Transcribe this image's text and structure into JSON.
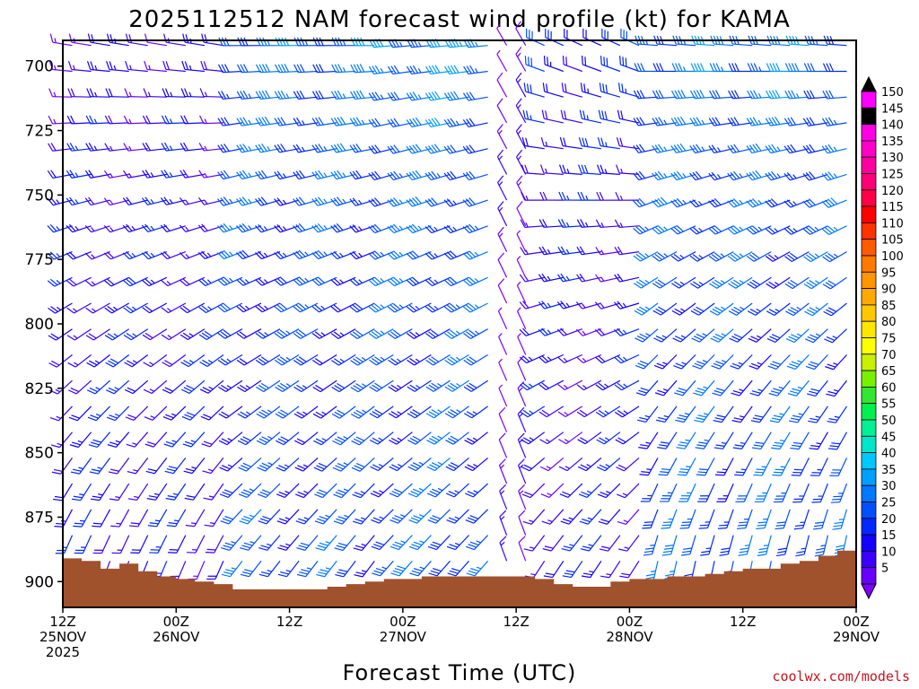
{
  "title": "2025112512 NAM forecast wind profile (kt) for KAMA",
  "xlabel": "Forecast Time (UTC)",
  "credit": "coolwx.com/models",
  "colors": {
    "terrain": "#a0522d",
    "frame": "#000000",
    "credit": "#c8141e"
  },
  "chart_data": {
    "type": "wind-barb time-height profile",
    "y_axis": {
      "label_unit": "hPa",
      "range": [
        690,
        910
      ],
      "ticks": [
        "700",
        "725",
        "750",
        "775",
        "800",
        "825",
        "850",
        "875",
        "900"
      ]
    },
    "x_axis": {
      "range_hours": [
        0,
        84
      ],
      "ticks": [
        {
          "hour": 0,
          "line1": "12Z",
          "line2": "25NOV",
          "line3": "2025"
        },
        {
          "hour": 12,
          "line1": "00Z",
          "line2": "26NOV",
          "line3": ""
        },
        {
          "hour": 24,
          "line1": "12Z",
          "line2": "",
          "line3": ""
        },
        {
          "hour": 36,
          "line1": "00Z",
          "line2": "27NOV",
          "line3": ""
        },
        {
          "hour": 48,
          "line1": "12Z",
          "line2": "",
          "line3": ""
        },
        {
          "hour": 60,
          "line1": "00Z",
          "line2": "28NOV",
          "line3": ""
        },
        {
          "hour": 72,
          "line1": "12Z",
          "line2": "",
          "line3": ""
        },
        {
          "hour": 84,
          "line1": "00Z",
          "line2": "29NOV",
          "line3": ""
        }
      ]
    },
    "surface_pressure": [
      {
        "hour": 0,
        "p": 891
      },
      {
        "hour": 2,
        "p": 892
      },
      {
        "hour": 4,
        "p": 895
      },
      {
        "hour": 6,
        "p": 893
      },
      {
        "hour": 8,
        "p": 896
      },
      {
        "hour": 10,
        "p": 898
      },
      {
        "hour": 12,
        "p": 899
      },
      {
        "hour": 14,
        "p": 900
      },
      {
        "hour": 16,
        "p": 901
      },
      {
        "hour": 18,
        "p": 903
      },
      {
        "hour": 20,
        "p": 903
      },
      {
        "hour": 22,
        "p": 903
      },
      {
        "hour": 24,
        "p": 903
      },
      {
        "hour": 26,
        "p": 903
      },
      {
        "hour": 28,
        "p": 902
      },
      {
        "hour": 30,
        "p": 901
      },
      {
        "hour": 32,
        "p": 900
      },
      {
        "hour": 34,
        "p": 899
      },
      {
        "hour": 36,
        "p": 899
      },
      {
        "hour": 38,
        "p": 898
      },
      {
        "hour": 40,
        "p": 898
      },
      {
        "hour": 42,
        "p": 898
      },
      {
        "hour": 44,
        "p": 898
      },
      {
        "hour": 46,
        "p": 898
      },
      {
        "hour": 48,
        "p": 898
      },
      {
        "hour": 50,
        "p": 899
      },
      {
        "hour": 52,
        "p": 901
      },
      {
        "hour": 54,
        "p": 902
      },
      {
        "hour": 56,
        "p": 902
      },
      {
        "hour": 58,
        "p": 900
      },
      {
        "hour": 60,
        "p": 899
      },
      {
        "hour": 62,
        "p": 899
      },
      {
        "hour": 64,
        "p": 898
      },
      {
        "hour": 66,
        "p": 898
      },
      {
        "hour": 68,
        "p": 897
      },
      {
        "hour": 70,
        "p": 896
      },
      {
        "hour": 72,
        "p": 895
      },
      {
        "hour": 74,
        "p": 895
      },
      {
        "hour": 76,
        "p": 893
      },
      {
        "hour": 78,
        "p": 892
      },
      {
        "hour": 80,
        "p": 890
      },
      {
        "hour": 82,
        "p": 888
      },
      {
        "hour": 84,
        "p": 886
      }
    ],
    "wind_speed_colorbar_kt": [
      "5",
      "10",
      "15",
      "20",
      "25",
      "30",
      "35",
      "40",
      "45",
      "50",
      "55",
      "60",
      "65",
      "70",
      "75",
      "80",
      "85",
      "90",
      "95",
      "100",
      "105",
      "110",
      "115",
      "120",
      "125",
      "130",
      "135",
      "140",
      "145",
      "150"
    ],
    "colorbar_colors": [
      "#7f00ff",
      "#6a00ff",
      "#3c00ff",
      "#1400ff",
      "#0028ff",
      "#0050ff",
      "#0078ff",
      "#00a0ff",
      "#00c8ff",
      "#00e6c8",
      "#00f096",
      "#00f050",
      "#32e632",
      "#78f000",
      "#c8f000",
      "#ffff00",
      "#ffe600",
      "#ffc800",
      "#ffaa00",
      "#ff9600",
      "#ff7800",
      "#ff5a00",
      "#ff3200",
      "#ff0000",
      "#ff0046",
      "#ff0078",
      "#ff00a0",
      "#ff00c8",
      "#ff00e6",
      "#000000"
    ],
    "barb_grid": {
      "pressure_step_hpa": 10,
      "time_step_hours": 2
    },
    "wind_regimes": [
      {
        "from_hour": 0,
        "to_hour": 18,
        "upper_dir": 280,
        "upper_kt": 18,
        "lower_dir": 200,
        "lower_kt": 22
      },
      {
        "from_hour": 18,
        "to_hour": 34,
        "upper_dir": 270,
        "upper_kt": 35,
        "lower_dir": 215,
        "lower_kt": 28
      },
      {
        "from_hour": 34,
        "to_hour": 46,
        "upper_dir": 265,
        "upper_kt": 38,
        "lower_dir": 220,
        "lower_kt": 30
      },
      {
        "from_hour": 46,
        "to_hour": 50,
        "upper_dir": 330,
        "upper_kt": 12,
        "lower_dir": 340,
        "lower_kt": 10
      },
      {
        "from_hour": 50,
        "to_hour": 62,
        "upper_dir": 295,
        "upper_kt": 25,
        "lower_dir": 210,
        "lower_kt": 20
      },
      {
        "from_hour": 62,
        "to_hour": 84,
        "upper_dir": 275,
        "upper_kt": 36,
        "lower_dir": 190,
        "lower_kt": 30
      }
    ]
  }
}
